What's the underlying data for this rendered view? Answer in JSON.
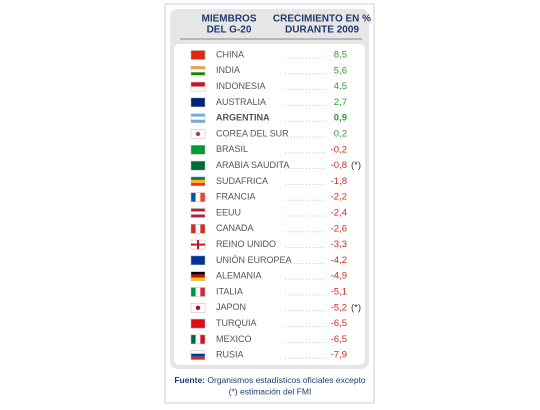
{
  "header": {
    "col1": [
      "MIEMBROS",
      "DEL G-20"
    ],
    "col2": [
      "CRECIMIENTO EN %",
      "DURANTE 2009"
    ]
  },
  "table": {
    "rows": [
      {
        "name": "CHINA",
        "value": "8,5"
      },
      {
        "name": "INDIA",
        "value": "5,6"
      },
      {
        "name": "INDONESIA",
        "value": "4,5"
      },
      {
        "name": "AUSTRALIA",
        "value": "2,7"
      },
      {
        "name": "ARGENTINA",
        "value": "0,9",
        "highlight": true
      },
      {
        "name": "COREA DEL SUR",
        "value": "0,2"
      },
      {
        "name": "BRASIL",
        "value": "-0,2"
      },
      {
        "name": "ARABIA SAUDITA",
        "value": "-0,8",
        "note": "(*)"
      },
      {
        "name": "SUDAFRICA",
        "value": "-1,8"
      },
      {
        "name": "FRANCIA",
        "value": "-2,2"
      },
      {
        "name": "EEUU",
        "value": "-2,4"
      },
      {
        "name": "CANADA",
        "value": "-2,6"
      },
      {
        "name": "REINO UNIDO",
        "value": "-3,3"
      },
      {
        "name": "UNIÓN EUROPEA",
        "value": "-4,2"
      },
      {
        "name": "ALEMANIA",
        "value": "-4,9"
      },
      {
        "name": "ITALIA",
        "value": "-5,1"
      },
      {
        "name": "JAPON",
        "value": "-5,2",
        "note": "(*)"
      },
      {
        "name": "TURQUIA",
        "value": "-6,5"
      },
      {
        "name": "MEXICO",
        "value": "-6,5"
      },
      {
        "name": "RUSIA",
        "value": "-7,9"
      }
    ]
  },
  "footer": {
    "label": "Fuente:",
    "text": "Organismos estadísticos oficiales excepto",
    "note": "(*) estimación del FMI"
  }
}
